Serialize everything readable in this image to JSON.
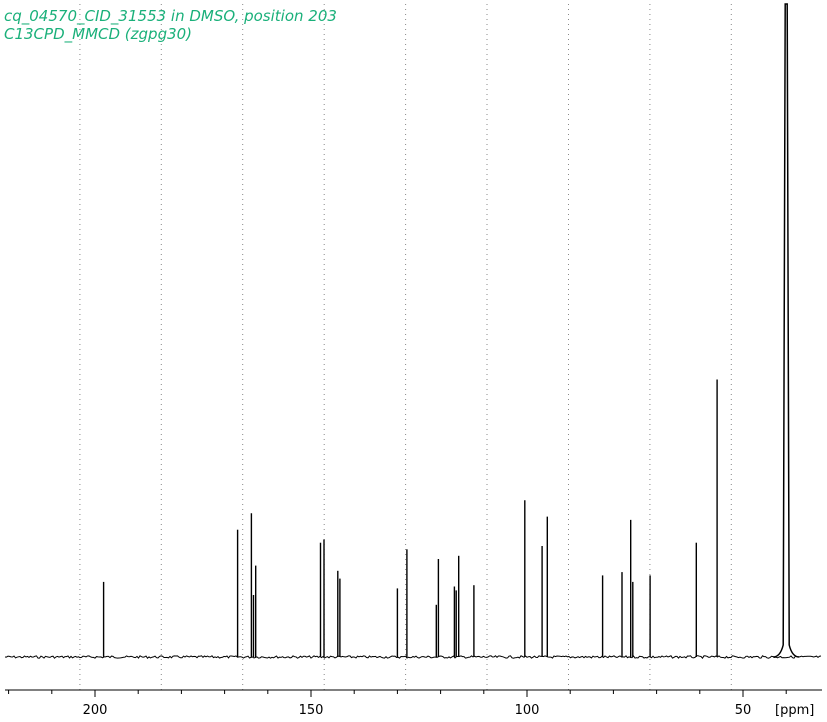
{
  "chart_data": {
    "type": "line",
    "title_lines": [
      "cq_04570_CID_31553 in DMSO, position 203",
      "C13CPD_MMCD (zgpg30)"
    ],
    "xlabel": "[ppm]",
    "x_ticks": [
      200,
      150,
      100,
      50
    ],
    "xlim": [
      222,
      40
    ],
    "ylim": [
      0,
      100
    ],
    "x_reversed": true,
    "grid": "vertical dotted",
    "colors": {
      "title": "#1ab07a",
      "trace": "#000000",
      "grid": "#888888"
    },
    "peaks": [
      {
        "x": 198.0,
        "y": 11.5
      },
      {
        "x": 167.0,
        "y": 19.5
      },
      {
        "x": 163.8,
        "y": 22.0
      },
      {
        "x": 163.3,
        "y": 9.5
      },
      {
        "x": 162.8,
        "y": 14.0
      },
      {
        "x": 147.8,
        "y": 17.5
      },
      {
        "x": 147.0,
        "y": 18.0
      },
      {
        "x": 143.8,
        "y": 13.2
      },
      {
        "x": 143.3,
        "y": 12.0
      },
      {
        "x": 130.0,
        "y": 10.5
      },
      {
        "x": 127.8,
        "y": 16.5
      },
      {
        "x": 121.0,
        "y": 8.0
      },
      {
        "x": 120.5,
        "y": 15.0
      },
      {
        "x": 116.8,
        "y": 10.8
      },
      {
        "x": 116.4,
        "y": 10.2
      },
      {
        "x": 115.8,
        "y": 15.5
      },
      {
        "x": 112.3,
        "y": 11.0
      },
      {
        "x": 100.5,
        "y": 24.0
      },
      {
        "x": 96.5,
        "y": 17.0
      },
      {
        "x": 95.3,
        "y": 21.5
      },
      {
        "x": 82.5,
        "y": 12.5
      },
      {
        "x": 78.0,
        "y": 13.0
      },
      {
        "x": 76.0,
        "y": 21.0
      },
      {
        "x": 75.5,
        "y": 11.5
      },
      {
        "x": 71.5,
        "y": 12.5
      },
      {
        "x": 60.8,
        "y": 17.5
      },
      {
        "x": 56.0,
        "y": 42.5
      },
      {
        "x": 40.0,
        "y": 100.0
      }
    ]
  }
}
